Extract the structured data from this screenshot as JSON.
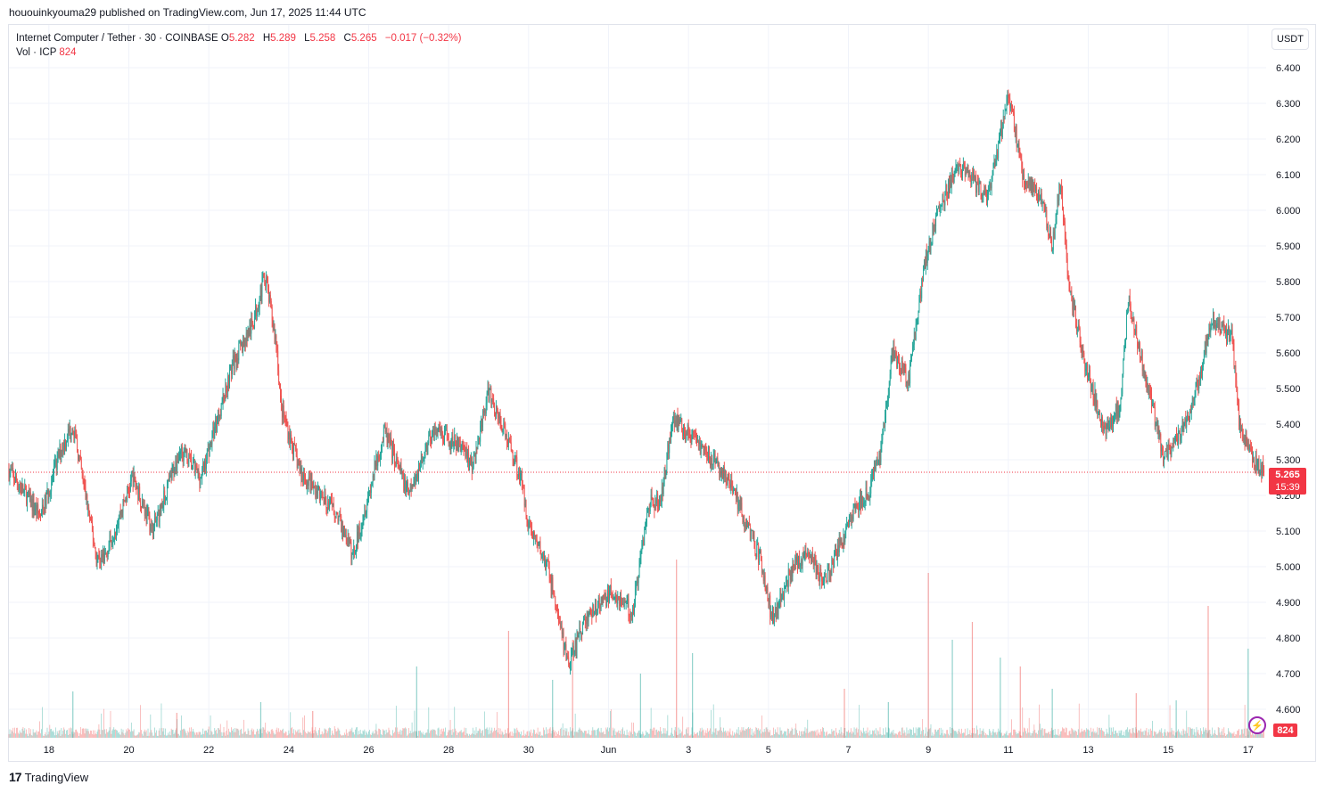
{
  "header": {
    "published_by": "hououinkyouma29 published on TradingView.com, Jun 17, 2025 11:44 UTC"
  },
  "legend": {
    "symbol": "Internet Computer / Tether · 30 · COINBASE",
    "open_key": "O",
    "open": "5.282",
    "high_key": "H",
    "high": "5.289",
    "low_key": "L",
    "low": "5.258",
    "close_key": "C",
    "close": "5.265",
    "change": "−0.017 (−0.32%)",
    "volume_label": "Vol · ICP",
    "volume": "824"
  },
  "currency": "USDT",
  "last_price": {
    "value": "5.265",
    "countdown": "15:39"
  },
  "last_volume": "824",
  "brand": {
    "name": "TradingView",
    "logo_text": "17"
  },
  "colors": {
    "up": "#26a69a",
    "down": "#ef5350",
    "grid": "#f0f3fa",
    "price_line": "#f23645"
  },
  "chart_data": {
    "type": "candlestick",
    "title": "Internet Computer / Tether · 30 · COINBASE",
    "xlabel": "",
    "ylabel": "USDT",
    "ylim": [
      4.52,
      6.52
    ],
    "y_ticks": [
      "6.400",
      "6.300",
      "6.200",
      "6.100",
      "6.000",
      "5.900",
      "5.800",
      "5.700",
      "5.600",
      "5.500",
      "5.400",
      "5.300",
      "5.200",
      "5.100",
      "5.000",
      "4.900",
      "4.800",
      "4.700",
      "4.600"
    ],
    "x_ticks": [
      {
        "label": "18",
        "day": 1.0
      },
      {
        "label": "20",
        "day": 3.0
      },
      {
        "label": "22",
        "day": 5.0
      },
      {
        "label": "24",
        "day": 7.0
      },
      {
        "label": "26",
        "day": 9.0
      },
      {
        "label": "28",
        "day": 11.0
      },
      {
        "label": "30",
        "day": 13.0
      },
      {
        "label": "Jun",
        "day": 15.0
      },
      {
        "label": "3",
        "day": 17.0
      },
      {
        "label": "5",
        "day": 19.0
      },
      {
        "label": "7",
        "day": 21.0
      },
      {
        "label": "9",
        "day": 23.0
      },
      {
        "label": "11",
        "day": 25.0
      },
      {
        "label": "13",
        "day": 27.0
      },
      {
        "label": "15",
        "day": 29.0
      },
      {
        "label": "17",
        "day": 31.0
      }
    ],
    "x_range_days": [
      0,
      31.45
    ],
    "price_path": [
      [
        0.0,
        5.27
      ],
      [
        0.8,
        5.14
      ],
      [
        1.3,
        5.33
      ],
      [
        1.6,
        5.4
      ],
      [
        2.2,
        5.02
      ],
      [
        2.4,
        5.03
      ],
      [
        3.1,
        5.25
      ],
      [
        3.6,
        5.1
      ],
      [
        4.3,
        5.33
      ],
      [
        4.8,
        5.25
      ],
      [
        5.3,
        5.45
      ],
      [
        5.6,
        5.57
      ],
      [
        6.1,
        5.68
      ],
      [
        6.4,
        5.82
      ],
      [
        6.7,
        5.62
      ],
      [
        6.8,
        5.45
      ],
      [
        7.3,
        5.26
      ],
      [
        8.2,
        5.15
      ],
      [
        8.6,
        5.03
      ],
      [
        9.4,
        5.38
      ],
      [
        10.0,
        5.2
      ],
      [
        10.6,
        5.38
      ],
      [
        11.4,
        5.33
      ],
      [
        11.6,
        5.28
      ],
      [
        12.0,
        5.49
      ],
      [
        12.5,
        5.35
      ],
      [
        12.8,
        5.25
      ],
      [
        13.0,
        5.12
      ],
      [
        13.5,
        4.99
      ],
      [
        14.0,
        4.72
      ],
      [
        14.4,
        4.85
      ],
      [
        15.1,
        4.93
      ],
      [
        15.6,
        4.87
      ],
      [
        16.0,
        5.18
      ],
      [
        16.3,
        5.18
      ],
      [
        16.6,
        5.42
      ],
      [
        17.2,
        5.35
      ],
      [
        17.6,
        5.3
      ],
      [
        18.1,
        5.22
      ],
      [
        18.8,
        5.02
      ],
      [
        19.1,
        4.85
      ],
      [
        19.6,
        5.0
      ],
      [
        20.0,
        5.04
      ],
      [
        20.4,
        4.95
      ],
      [
        21.1,
        5.15
      ],
      [
        21.5,
        5.21
      ],
      [
        21.8,
        5.31
      ],
      [
        22.1,
        5.6
      ],
      [
        22.5,
        5.52
      ],
      [
        22.9,
        5.85
      ],
      [
        23.2,
        5.98
      ],
      [
        23.7,
        6.12
      ],
      [
        24.0,
        6.1
      ],
      [
        24.5,
        6.03
      ],
      [
        25.0,
        6.33
      ],
      [
        25.4,
        6.08
      ],
      [
        25.8,
        6.04
      ],
      [
        26.1,
        5.9
      ],
      [
        26.3,
        6.08
      ],
      [
        26.5,
        5.8
      ],
      [
        26.9,
        5.58
      ],
      [
        27.4,
        5.38
      ],
      [
        27.8,
        5.45
      ],
      [
        28.0,
        5.75
      ],
      [
        28.5,
        5.5
      ],
      [
        28.9,
        5.3
      ],
      [
        29.3,
        5.38
      ],
      [
        29.6,
        5.45
      ],
      [
        30.1,
        5.7
      ],
      [
        30.6,
        5.64
      ],
      [
        30.8,
        5.38
      ],
      [
        31.1,
        5.3
      ],
      [
        31.4,
        5.265
      ]
    ],
    "volume_spikes": [
      [
        1.6,
        52
      ],
      [
        4.2,
        28
      ],
      [
        6.3,
        40
      ],
      [
        7.6,
        30
      ],
      [
        10.2,
        80
      ],
      [
        12.5,
        120
      ],
      [
        13.6,
        65
      ],
      [
        14.1,
        110
      ],
      [
        15.8,
        72
      ],
      [
        16.7,
        200
      ],
      [
        17.1,
        95
      ],
      [
        20.9,
        55
      ],
      [
        22.0,
        40
      ],
      [
        23.0,
        185
      ],
      [
        23.6,
        110
      ],
      [
        24.1,
        130
      ],
      [
        24.8,
        90
      ],
      [
        25.3,
        80
      ],
      [
        26.1,
        55
      ],
      [
        28.2,
        50
      ],
      [
        29.2,
        42
      ],
      [
        30.0,
        148
      ],
      [
        31.0,
        100
      ]
    ]
  }
}
